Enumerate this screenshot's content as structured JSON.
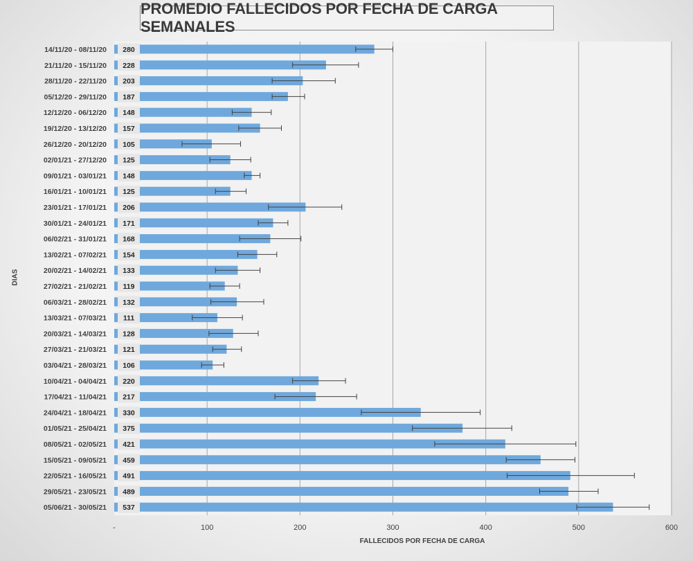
{
  "chart_data": {
    "type": "bar",
    "orientation": "horizontal",
    "title": "PROMEDIO FALLECIDOS POR FECHA DE CARGA SEMANALES",
    "xlabel": "FALLECIDOS POR FECHA DE CARGA",
    "ylabel": "DIAS",
    "xlim": [
      0,
      600
    ],
    "x_ticks": [
      "-",
      "100",
      "200",
      "300",
      "400",
      "500",
      "600"
    ],
    "grid": "vertical",
    "bar_color": "#6fa8dc",
    "categories": [
      "14/11/20 - 08/11/20",
      "21/11/20 - 15/11/20",
      "28/11/20 - 22/11/20",
      "05/12/20 - 29/11/20",
      "12/12/20 - 06/12/20",
      "19/12/20 - 13/12/20",
      "26/12/20 - 20/12/20",
      "02/01/21 - 27/12/20",
      "09/01/21 - 03/01/21",
      "16/01/21 - 10/01/21",
      "23/01/21 - 17/01/21",
      "30/01/21 - 24/01/21",
      "06/02/21 - 31/01/21",
      "13/02/21 - 07/02/21",
      "20/02/21 - 14/02/21",
      "27/02/21 - 21/02/21",
      "06/03/21 - 28/02/21",
      "13/03/21 - 07/03/21",
      "20/03/21 - 14/03/21",
      "27/03/21 - 21/03/21",
      "03/04/21 - 28/03/21",
      "10/04/21 - 04/04/21",
      "17/04/21 - 11/04/21",
      "24/04/21 - 18/04/21",
      "01/05/21 - 25/04/21",
      "08/05/21 - 02/05/21",
      "15/05/21 - 09/05/21",
      "22/05/21 - 16/05/21",
      "29/05/21 - 23/05/21",
      "05/06/21 - 30/05/21"
    ],
    "values": [
      280,
      228,
      203,
      187,
      148,
      157,
      105,
      125,
      148,
      125,
      206,
      171,
      168,
      154,
      133,
      119,
      132,
      111,
      128,
      121,
      106,
      220,
      217,
      330,
      375,
      421,
      459,
      491,
      489,
      537
    ],
    "error_low": [
      260,
      192,
      170,
      170,
      127,
      134,
      73,
      103,
      140,
      109,
      166,
      155,
      135,
      133,
      109,
      103,
      104,
      84,
      102,
      106,
      94,
      192,
      173,
      266,
      321,
      345,
      422,
      423,
      458,
      498
    ],
    "error_high": [
      300,
      263,
      238,
      205,
      169,
      180,
      136,
      147,
      157,
      142,
      245,
      187,
      201,
      175,
      157,
      135,
      161,
      138,
      155,
      137,
      118,
      249,
      261,
      394,
      428,
      497,
      496,
      560,
      521,
      576
    ]
  }
}
